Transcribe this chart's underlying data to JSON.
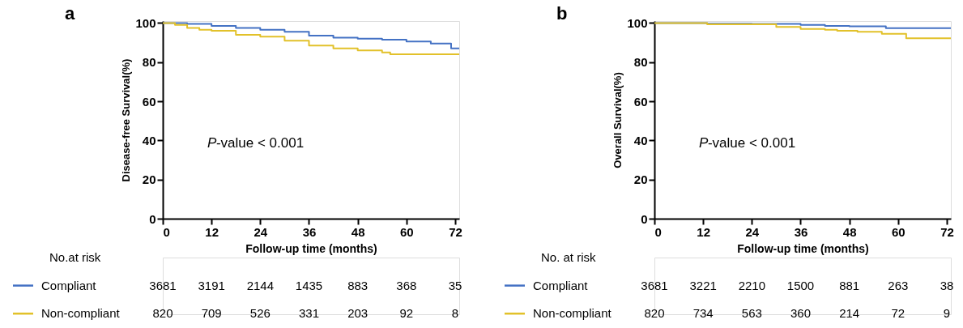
{
  "chart_data": [
    {
      "type": "step",
      "title": "a",
      "xlabel": "Follow-up time (months)",
      "ylabel": "Disease-free Survival(%)",
      "xlim": [
        0,
        73
      ],
      "xticks": [
        0,
        12,
        24,
        36,
        48,
        60,
        72
      ],
      "ylim": [
        0,
        101
      ],
      "yticks": [
        0,
        20,
        40,
        60,
        80,
        100
      ],
      "grid": false,
      "legend": "bottom",
      "series": [
        {
          "name": "Compliant",
          "color": "#4472c4",
          "x": [
            0,
            6,
            12,
            18,
            24,
            30,
            36,
            42,
            48,
            54,
            60,
            66,
            71,
            73
          ],
          "values": [
            100,
            99.5,
            98.5,
            97.5,
            96.5,
            95.5,
            93.5,
            92.5,
            92,
            91.5,
            90.5,
            89.5,
            87,
            87
          ]
        },
        {
          "name": "Non-compliant",
          "color": "#e2c12a",
          "x": [
            0,
            3,
            6,
            9,
            12,
            18,
            24,
            30,
            36,
            42,
            48,
            54,
            56,
            73
          ],
          "values": [
            100,
            99,
            97.5,
            96.5,
            96,
            94,
            93,
            91,
            88.5,
            87,
            86,
            85,
            84,
            84
          ]
        }
      ],
      "annotations": [
        "P-value < 0.001",
        "No.at risk",
        "3681",
        "3191",
        "2144",
        "1435",
        "883",
        "368",
        "35",
        "820",
        "709",
        "526",
        "331",
        "203",
        "92",
        "8"
      ]
    },
    {
      "type": "step",
      "title": "b",
      "xlabel": "Follow-up time (months)",
      "ylabel": "Overall Survival(%)",
      "xlim": [
        0,
        73
      ],
      "xticks": [
        0,
        12,
        24,
        36,
        48,
        60,
        72
      ],
      "ylim": [
        0,
        101
      ],
      "yticks": [
        0,
        20,
        40,
        60,
        80,
        100
      ],
      "grid": false,
      "legend": "bottom",
      "series": [
        {
          "name": "Compliant",
          "color": "#4472c4",
          "x": [
            0,
            13,
            24,
            36,
            42,
            48,
            57,
            73
          ],
          "values": [
            100,
            99.7,
            99.5,
            99,
            98.5,
            98.3,
            97.4,
            97.4
          ]
        },
        {
          "name": "Non-compliant",
          "color": "#e2c12a",
          "x": [
            0,
            13,
            30,
            36,
            42,
            45,
            50,
            56,
            62,
            73
          ],
          "values": [
            100,
            99.3,
            98,
            97,
            96.5,
            96,
            95.5,
            94.5,
            92.2,
            92.2
          ]
        }
      ],
      "annotations": [
        "P-value < 0.001",
        "No. at risk",
        "3681",
        "3221",
        "2210",
        "1500",
        "881",
        "263",
        "38",
        "820",
        "734",
        "563",
        "360",
        "214",
        "72",
        "9"
      ]
    }
  ]
}
